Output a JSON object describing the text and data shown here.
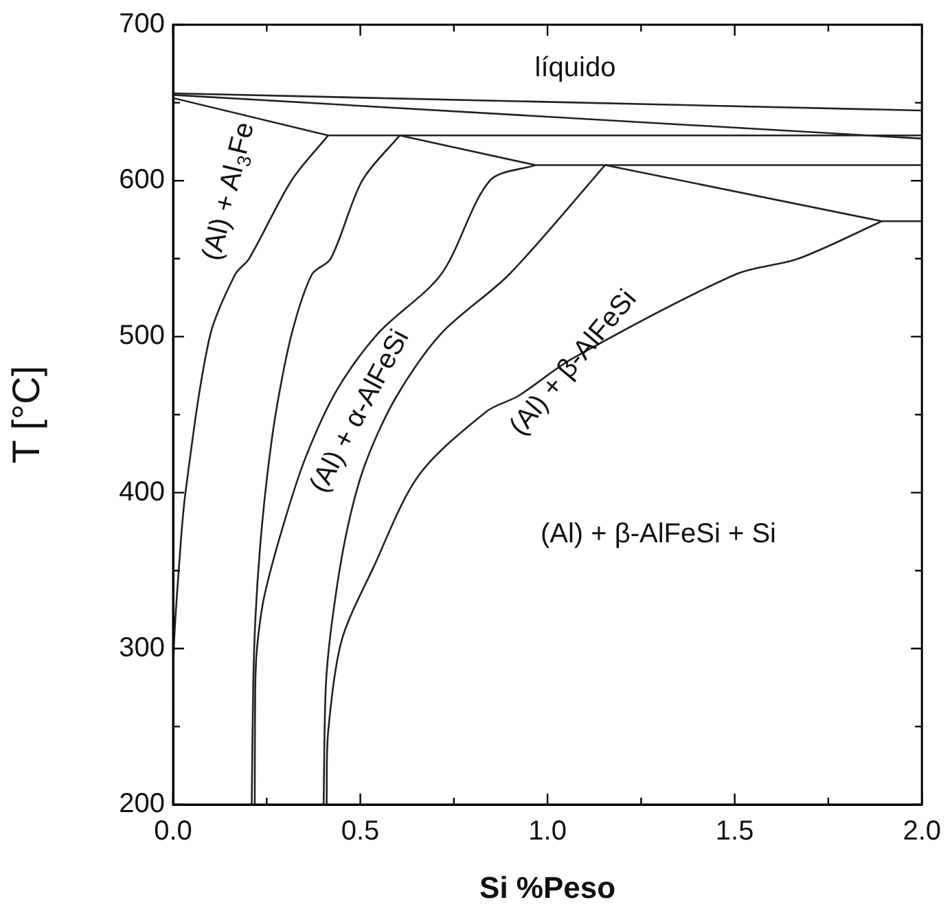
{
  "chart_data": {
    "type": "line",
    "xlabel": "Si %Peso",
    "ylabel": "T [°C]",
    "xlim": [
      0,
      2
    ],
    "ylim": [
      200,
      700
    ],
    "xticks": [
      {
        "value": 0,
        "label": "0.0"
      },
      {
        "value": 0.25,
        "label": null
      },
      {
        "value": 0.5,
        "label": "0.5"
      },
      {
        "value": 0.75,
        "label": null
      },
      {
        "value": 1,
        "label": "1.0"
      },
      {
        "value": 1.25,
        "label": null
      },
      {
        "value": 1.5,
        "label": "1.5"
      },
      {
        "value": 1.75,
        "label": null
      },
      {
        "value": 2,
        "label": "2.0"
      }
    ],
    "yticks": [
      200,
      {
        "value": 250,
        "label": null
      },
      300,
      {
        "value": 350,
        "label": null
      },
      400,
      {
        "value": 450,
        "label": null
      },
      500,
      {
        "value": 550,
        "label": null
      },
      600,
      {
        "value": 650,
        "label": null
      },
      700
    ],
    "grid": false,
    "legend": false,
    "marker": "none",
    "line_style": "solid",
    "series": [
      {
        "color": "#222222",
        "x": [
          0,
          2
        ],
        "values": [
          656,
          645
        ]
      },
      {
        "color": "#222222",
        "x": [
          0,
          2
        ],
        "values": [
          655,
          627
        ]
      },
      {
        "color": "#222222",
        "x": [
          0,
          0.414,
          2
        ],
        "values": [
          653,
          629,
          629
        ]
      },
      {
        "color": "#222222",
        "x": [
          0.605,
          0.968,
          2
        ],
        "values": [
          629,
          610,
          610
        ]
      },
      {
        "color": "#222222",
        "x": [
          1.154,
          1.893,
          2
        ],
        "values": [
          610,
          574,
          574
        ]
      },
      {
        "color": "#222222",
        "x": [
          0.414,
          0.316,
          0.203,
          0.166,
          0.098,
          0.033,
          0.015,
          0.002,
          0
        ],
        "values": [
          629,
          600,
          550,
          540,
          500,
          400,
          350,
          300,
          250
        ]
      },
      {
        "color": "#222222",
        "x": [
          0.605,
          0.505,
          0.421,
          0.371,
          0.317,
          0.275,
          0.25,
          0.232,
          0.22,
          0.214,
          0.21
        ],
        "values": [
          629,
          600,
          550,
          540,
          502,
          452,
          408,
          364,
          320,
          276,
          200
        ]
      },
      {
        "color": "#222222",
        "x": [
          0.968,
          0.846,
          0.716,
          0.547,
          0.438,
          0.353,
          0.293,
          0.244,
          0.226,
          0.22,
          0.218
        ],
        "values": [
          610,
          600,
          540,
          502,
          466,
          422,
          378,
          334,
          305,
          282,
          200
        ]
      },
      {
        "color": "#222222",
        "x": [
          1.154,
          0.898,
          0.716,
          0.595,
          0.511,
          0.462,
          0.426,
          0.408,
          0.402
        ],
        "values": [
          610,
          540,
          502,
          461,
          417,
          373,
          320,
          276,
          200
        ]
      },
      {
        "color": "#222222",
        "x": [
          1.893,
          1.67,
          1.503,
          1.067,
          0.922,
          0.837,
          0.656,
          0.535,
          0.45,
          0.414,
          0.41
        ],
        "values": [
          574,
          550,
          540,
          486,
          462,
          452,
          411,
          352,
          305,
          246,
          200
        ]
      }
    ],
    "annotations": [
      "líquido",
      "(Al) + Al$_{3}$Fe",
      "(Al) + α-AlFeSi",
      "(Al) + β-AlFeSi",
      "(Al) + β-AlFeSi + Si"
    ]
  }
}
